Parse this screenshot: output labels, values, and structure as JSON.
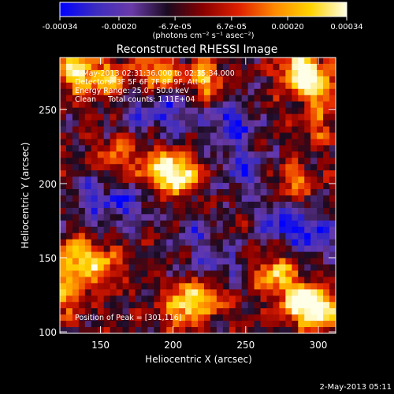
{
  "chart_data": {
    "type": "heatmap",
    "title": "Reconstructed RHESSI Image",
    "xlabel": "Heliocentric X (arcsec)",
    "ylabel": "Heliocentric Y (arcsec)",
    "xlim": [
      122,
      312
    ],
    "ylim": [
      99,
      285
    ],
    "x_ticks": [
      150,
      200,
      250,
      300
    ],
    "y_ticks": [
      100,
      150,
      200,
      250
    ],
    "colorbar": {
      "range": [
        -0.00034,
        0.00034
      ],
      "tick_labels": [
        "-0.00034",
        "-0.00020",
        "-6.7e-05",
        "6.7e-05",
        "0.00020",
        "0.00034"
      ],
      "tick_values": [
        -0.00034,
        -0.0002,
        -6.7e-05,
        6.7e-05,
        0.0002,
        0.00034
      ],
      "unit_label": "(photons cm⁻² s⁻¹ asec⁻²)",
      "colors": [
        "#0000ff",
        "#3c2cc0",
        "#6a3aa8",
        "#1a0a20",
        "#8a0000",
        "#e02000",
        "#ff8a00",
        "#ffd400",
        "#ffffe8"
      ]
    },
    "annotations": [
      "2-May-2013 02:31:36.000 to 02:35:34.000",
      "Detectors: 3F 5F 6F 7F 8F 9F, Att 0",
      "Energy Range: 25.0 - 50.0 keV",
      "Clean     Total counts: 1.11E+04",
      "Position of Peak = [301,116]"
    ],
    "bright_sources": [
      {
        "x": 135,
        "y": 275,
        "level": 0.85
      },
      {
        "x": 158,
        "y": 270,
        "level": 0.6
      },
      {
        "x": 190,
        "y": 273,
        "level": 0.7
      },
      {
        "x": 222,
        "y": 270,
        "level": 0.65
      },
      {
        "x": 287,
        "y": 276,
        "level": 0.95
      },
      {
        "x": 300,
        "y": 266,
        "level": 0.7
      },
      {
        "x": 204,
        "y": 206,
        "level": 1.0
      },
      {
        "x": 188,
        "y": 210,
        "level": 0.55
      },
      {
        "x": 161,
        "y": 219,
        "level": 0.45
      },
      {
        "x": 130,
        "y": 150,
        "level": 0.75
      },
      {
        "x": 150,
        "y": 145,
        "level": 0.6
      },
      {
        "x": 128,
        "y": 125,
        "level": 0.55
      },
      {
        "x": 207,
        "y": 118,
        "level": 0.8
      },
      {
        "x": 225,
        "y": 125,
        "level": 0.6
      },
      {
        "x": 270,
        "y": 140,
        "level": 0.7
      },
      {
        "x": 300,
        "y": 115,
        "level": 1.0
      },
      {
        "x": 286,
        "y": 121,
        "level": 0.8
      },
      {
        "x": 282,
        "y": 200,
        "level": 0.5
      },
      {
        "x": 300,
        "y": 240,
        "level": 0.4
      }
    ],
    "negative_regions": [
      {
        "x": 240,
        "y": 240,
        "level": 0.9
      },
      {
        "x": 275,
        "y": 175,
        "level": 0.85
      },
      {
        "x": 250,
        "y": 208,
        "level": 0.7
      },
      {
        "x": 200,
        "y": 248,
        "level": 0.7
      },
      {
        "x": 145,
        "y": 190,
        "level": 0.6
      },
      {
        "x": 170,
        "y": 185,
        "level": 0.6
      },
      {
        "x": 300,
        "y": 165,
        "level": 0.8
      },
      {
        "x": 232,
        "y": 142,
        "level": 0.6
      },
      {
        "x": 175,
        "y": 250,
        "level": 0.5
      },
      {
        "x": 215,
        "y": 165,
        "level": 0.5
      }
    ]
  },
  "footer": {
    "timestamp": "2-May-2013 05:11"
  }
}
